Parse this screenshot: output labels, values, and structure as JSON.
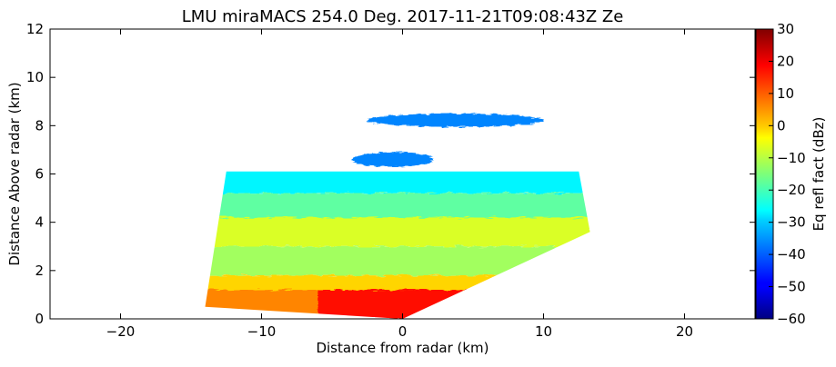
{
  "chart_data": {
    "type": "heatmap",
    "title": "LMU miraMACS 254.0 Deg. 2017-11-21T09:08:43Z  Ze",
    "xlabel": "Distance from radar (km)",
    "ylabel": "Distance Above radar  (km)",
    "xlim": [
      -25,
      25
    ],
    "ylim": [
      0,
      12
    ],
    "x_ticks": [
      -20,
      -10,
      0,
      10,
      20
    ],
    "x_tick_labels": [
      "−20",
      "−10",
      "0",
      "10",
      "20"
    ],
    "y_ticks": [
      0,
      2,
      4,
      6,
      8,
      10,
      12
    ],
    "y_tick_labels": [
      "0",
      "2",
      "4",
      "6",
      "8",
      "10",
      "12"
    ],
    "colorbar": {
      "label": "Eq refl fact (dBz)",
      "colormap": "jet",
      "range": [
        -60,
        30
      ],
      "ticks": [
        30,
        20,
        10,
        0,
        -10,
        -20,
        -30,
        -40,
        -50,
        -60
      ],
      "tick_labels": [
        "30",
        "20",
        "10",
        "0",
        "−10",
        "−20",
        "−30",
        "−40",
        "−50",
        "−60"
      ]
    },
    "grid": false,
    "scan": {
      "azimuth_deg": 254.0,
      "time": "2017-11-21T09:08:43Z",
      "variable": "Ze",
      "echo_region": {
        "left_edge_x_km": [
          -14,
          -12.5
        ],
        "right_edge_x_km": [
          13.5,
          12.5
        ],
        "top_km": 6.1,
        "right_lower_boundary": [
          [
            0,
            0
          ],
          [
            13.3,
            3.6
          ]
        ]
      },
      "layers": [
        {
          "x_km": [
            -14,
            13.3
          ],
          "y_km": [
            5.2,
            6.2
          ],
          "ze_dbz": -27
        },
        {
          "x_km": [
            -14,
            13.3
          ],
          "y_km": [
            4.0,
            5.2
          ],
          "ze_dbz": -18
        },
        {
          "x_km": [
            -14,
            13.3
          ],
          "y_km": [
            3.0,
            4.2
          ],
          "ze_dbz": -7
        },
        {
          "x_km": [
            -14,
            12.0
          ],
          "y_km": [
            1.8,
            3.0
          ],
          "ze_dbz": -12
        },
        {
          "x_km": [
            -14,
            8.0
          ],
          "y_km": [
            1.0,
            1.8
          ],
          "ze_dbz": 0
        },
        {
          "x_km": [
            -14,
            5.0
          ],
          "y_km": [
            0.2,
            1.2
          ],
          "ze_dbz": 7
        },
        {
          "x_km": [
            -6,
            4.5
          ],
          "y_km": [
            0.0,
            1.2
          ],
          "ze_dbz": 18
        }
      ],
      "upper_bands": [
        {
          "x_km": [
            -2.5,
            10.0
          ],
          "y_km": [
            7.95,
            8.5
          ],
          "ze_dbz": -37
        },
        {
          "x_km": [
            -3.6,
            2.2
          ],
          "y_km": [
            6.3,
            6.9
          ],
          "ze_dbz": -37
        }
      ]
    }
  }
}
